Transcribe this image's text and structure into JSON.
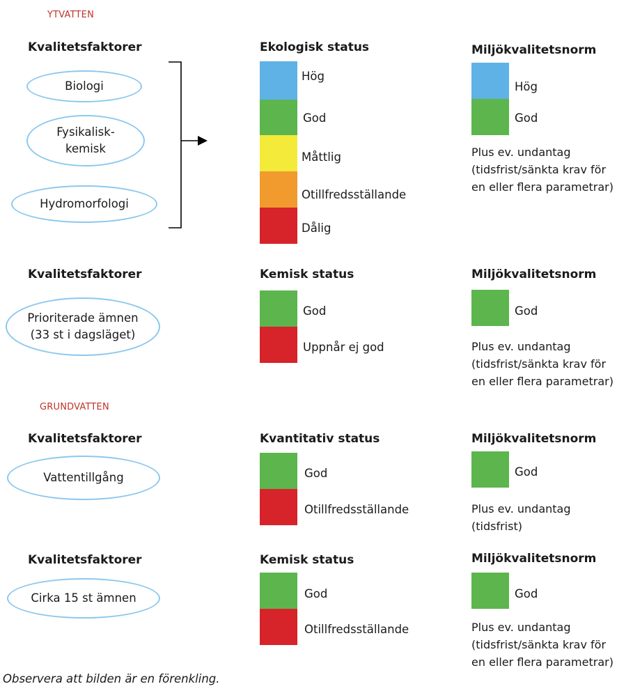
{
  "ytvatten": {
    "section_label": "YTVATTEN",
    "block1": {
      "factors_header": "Kvalitetsfaktorer",
      "factors": [
        "Biologi",
        "Fysikalisk-\nkemisk",
        "Hydromorfologi"
      ],
      "status_header": "Ekologisk status",
      "status_levels": [
        "Hög",
        "God",
        "Måttlig",
        "Otillfredsställande",
        "Dålig"
      ],
      "norm_header": "Miljökvalitetsnorm",
      "norm_levels": [
        "Hög",
        "God"
      ],
      "norm_note": "Plus ev. undantag\n(tidsfrist/sänkta krav för\nen eller flera parametrar)"
    },
    "block2": {
      "factors_header": "Kvalitetsfaktorer",
      "factor": "Prioriterade ämnen\n(33 st i dagsläget)",
      "status_header": "Kemisk status",
      "status_levels": [
        "God",
        "Uppnår ej god"
      ],
      "norm_header": "Miljökvalitetsnorm",
      "norm_level": "God",
      "norm_note": "Plus ev. undantag\n(tidsfrist/sänkta krav för\nen eller flera parametrar)"
    }
  },
  "grundvatten": {
    "section_label": "GRUNDVATTEN",
    "block3": {
      "factors_header": "Kvalitetsfaktorer",
      "factor": "Vattentillgång",
      "status_header": "Kvantitativ status",
      "status_levels": [
        "God",
        "Otillfredsställande"
      ],
      "norm_header": "Miljökvalitetsnorm",
      "norm_level": "God",
      "norm_note": "Plus ev. undantag\n(tidsfrist)"
    },
    "block4": {
      "factors_header": "Kvalitetsfaktorer",
      "factor": "Cirka 15 st ämnen",
      "status_header": "Kemisk status",
      "status_levels": [
        "God",
        "Otillfredsställande"
      ],
      "norm_header": "Miljökvalitetsnorm",
      "norm_level": "God",
      "norm_note": "Plus ev. undantag\n(tidsfrist/sänkta krav för\nen eller flera parametrar)"
    }
  },
  "footer": "Observera att bilden är en förenkling.",
  "colors": {
    "hog": "#5fb2e6",
    "god": "#5db54e",
    "mattlig": "#f4ea3a",
    "otillfredsstallande": "#f19a2e",
    "dalig": "#d7232a",
    "oval_border": "#8cc8ee",
    "section_label": "#c0322a"
  }
}
